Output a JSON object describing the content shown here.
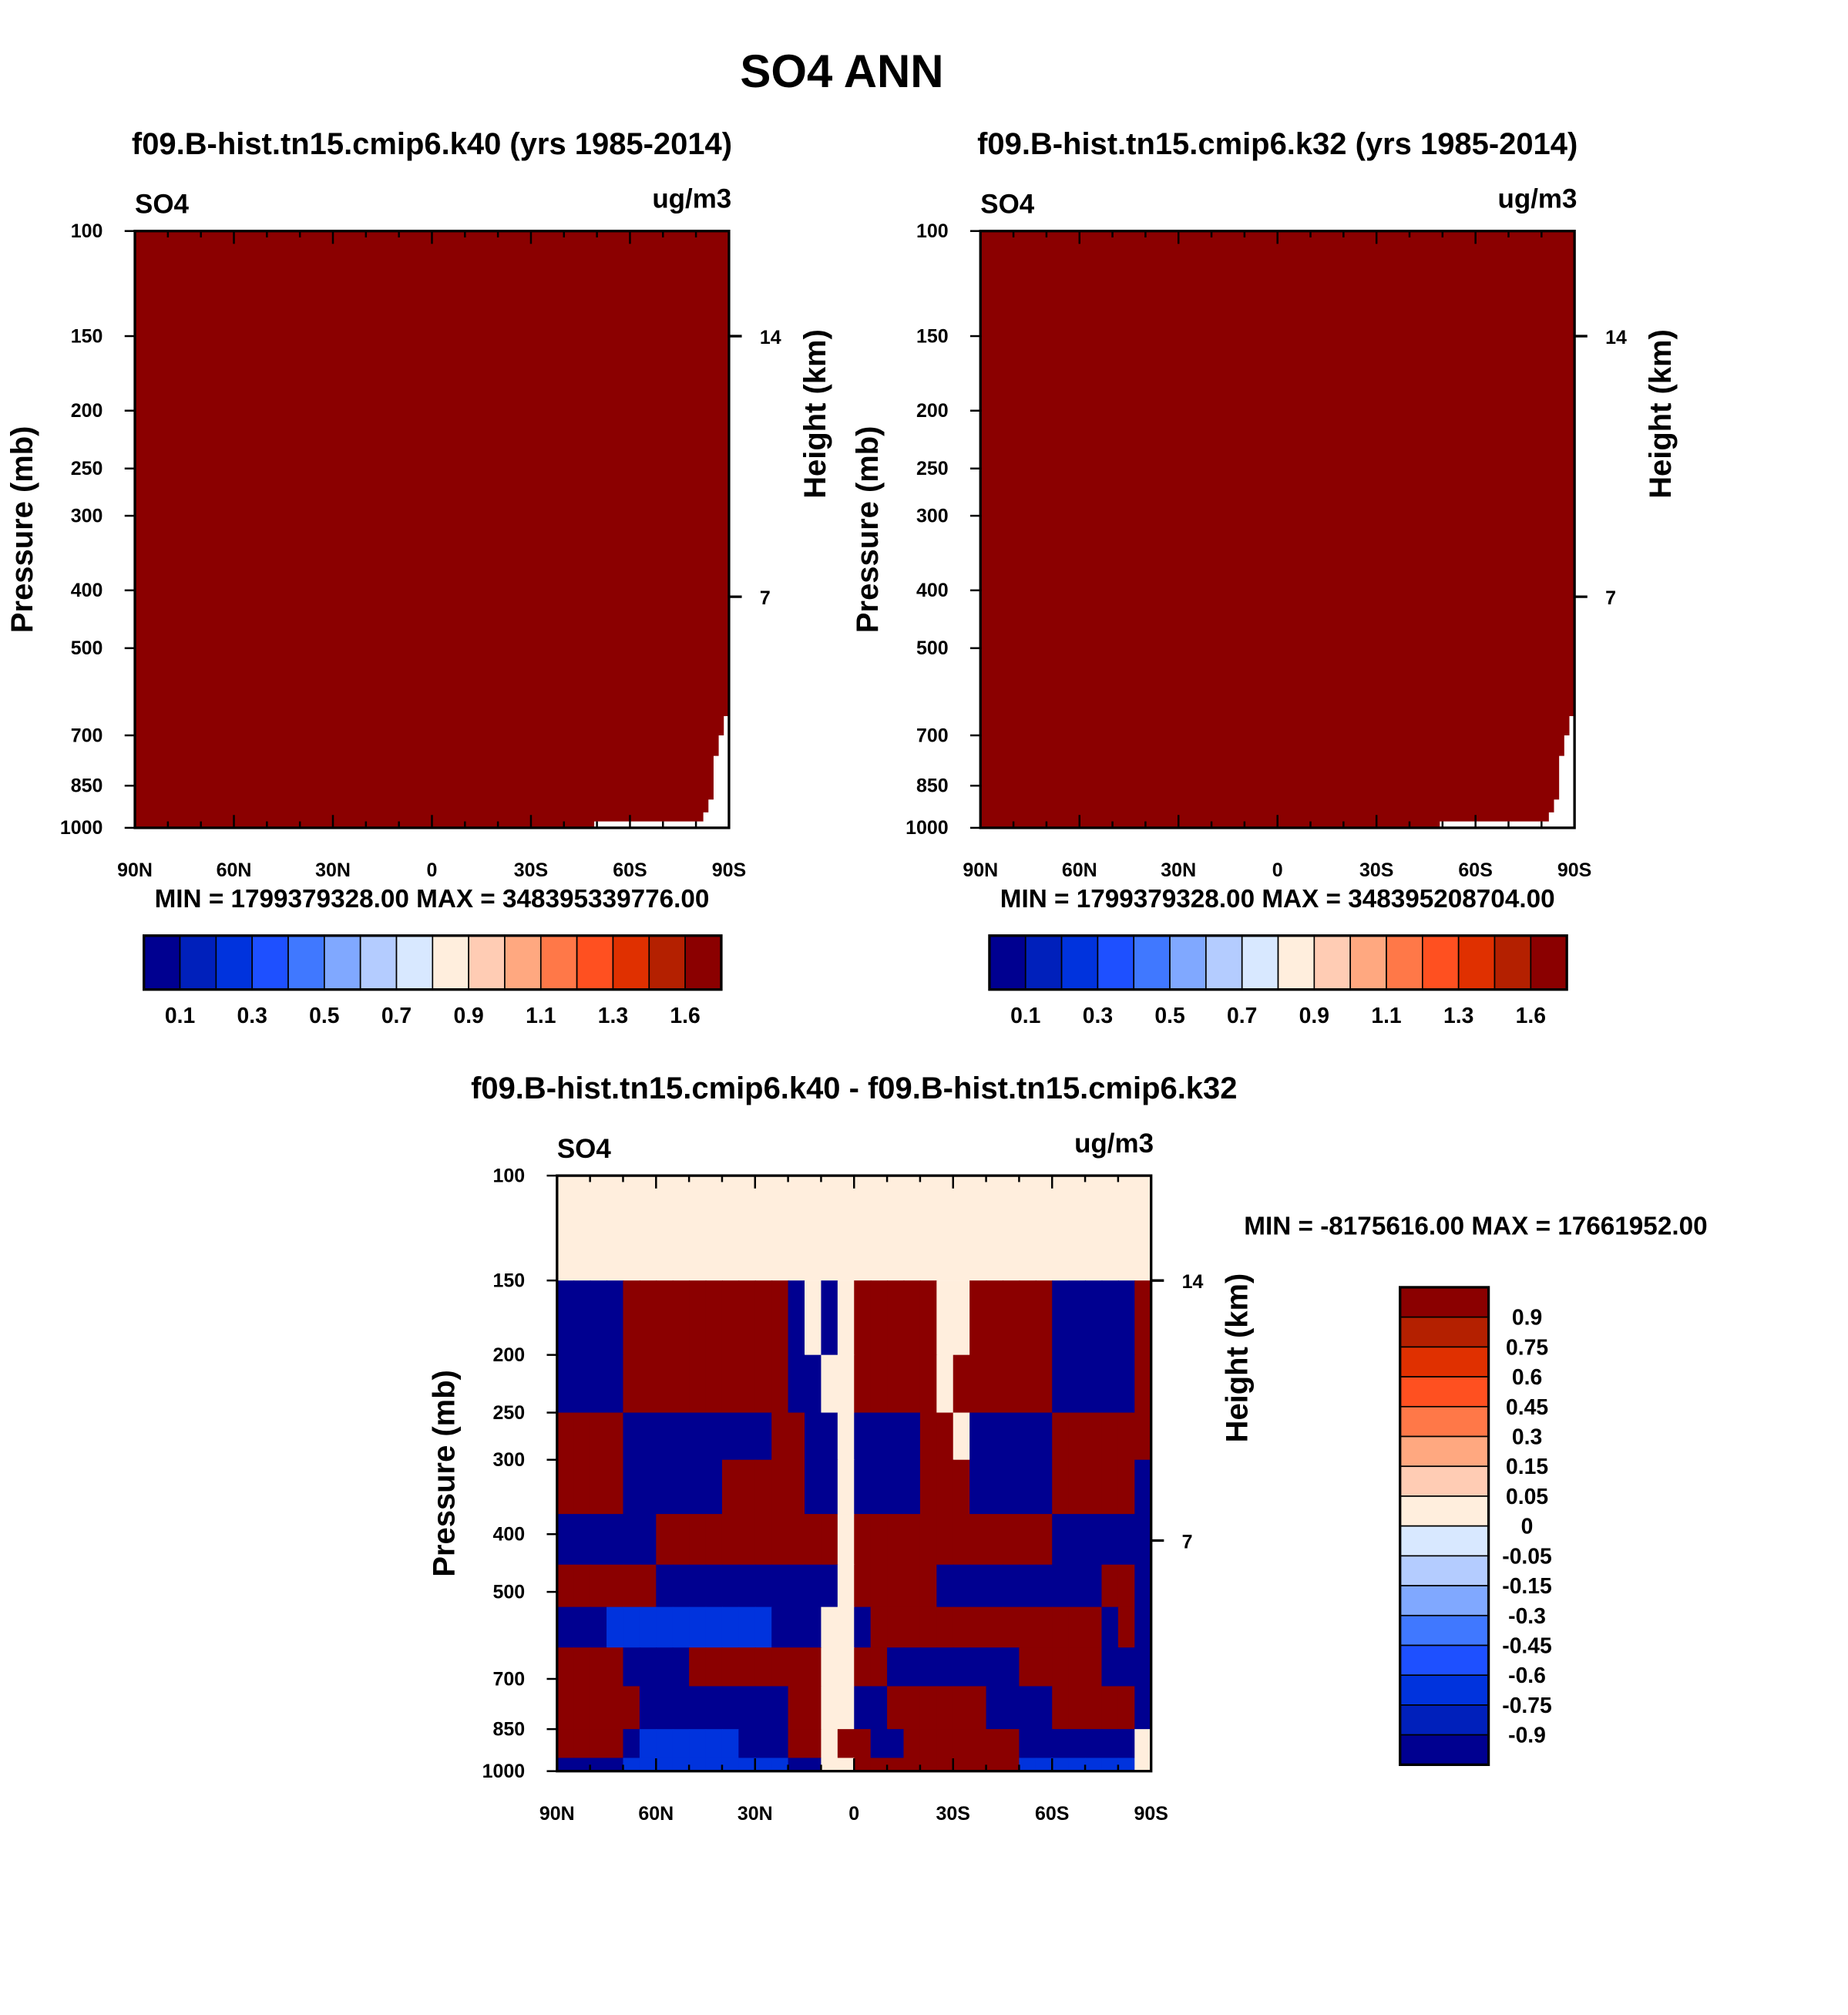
{
  "figure_title": "SO4 ANN",
  "chart_data": [
    {
      "type": "heatmap",
      "title": "f09.B-hist.tn15.cmip6.k40 (yrs 1985-2014)",
      "left_label": "SO4",
      "right_label": "ug/m3",
      "ylabel": "Pressure (mb)",
      "ylabel_right": "Height (km)",
      "y_ticks": [
        100,
        150,
        200,
        250,
        300,
        400,
        500,
        700,
        850,
        1000
      ],
      "y_right_ticks": [
        {
          "label": "14",
          "pressure": 150
        },
        {
          "label": "7",
          "pressure": 410
        }
      ],
      "x_ticks": [
        "90N",
        "60N",
        "30N",
        "0",
        "30S",
        "60S",
        "90S"
      ],
      "ylim": [
        1000,
        100
      ],
      "xlim": [
        90,
        -90
      ],
      "stats": "MIN = 1799379328.00  MAX = 348395339776.00",
      "fill_level_index": 15,
      "colorbar_labels": [
        "0.1",
        "0.3",
        "0.5",
        "0.7",
        "0.9",
        "1.1",
        "1.3",
        "1.6"
      ]
    },
    {
      "type": "heatmap",
      "title": "f09.B-hist.tn15.cmip6.k32 (yrs 1985-2014)",
      "left_label": "SO4",
      "right_label": "ug/m3",
      "ylabel": "Pressure (mb)",
      "ylabel_right": "Height (km)",
      "y_ticks": [
        100,
        150,
        200,
        250,
        300,
        400,
        500,
        700,
        850,
        1000
      ],
      "y_right_ticks": [
        {
          "label": "14",
          "pressure": 150
        },
        {
          "label": "7",
          "pressure": 410
        }
      ],
      "x_ticks": [
        "90N",
        "60N",
        "30N",
        "0",
        "30S",
        "60S",
        "90S"
      ],
      "ylim": [
        1000,
        100
      ],
      "xlim": [
        90,
        -90
      ],
      "stats": "MIN = 1799379328.00  MAX = 348395208704.00",
      "fill_level_index": 15,
      "colorbar_labels": [
        "0.1",
        "0.3",
        "0.5",
        "0.7",
        "0.9",
        "1.1",
        "1.3",
        "1.6"
      ]
    },
    {
      "type": "heatmap",
      "title": "f09.B-hist.tn15.cmip6.k40 - f09.B-hist.tn15.cmip6.k32",
      "left_label": "SO4",
      "right_label": "ug/m3",
      "ylabel": "Pressure (mb)",
      "ylabel_right": "Height (km)",
      "y_ticks": [
        100,
        150,
        200,
        250,
        300,
        400,
        500,
        700,
        850,
        1000
      ],
      "y_right_ticks": [
        {
          "label": "14",
          "pressure": 150
        },
        {
          "label": "7",
          "pressure": 410
        }
      ],
      "x_ticks": [
        "90N",
        "60N",
        "30N",
        "0",
        "30S",
        "60S",
        "90S"
      ],
      "ylim": [
        1000,
        100
      ],
      "xlim": [
        90,
        -90
      ],
      "stats": "MIN = -8175616.00  MAX = 17661952.00",
      "colorbar_labels": [
        "0.9",
        "0.75",
        "0.6",
        "0.45",
        "0.3",
        "0.15",
        "0.05",
        "0",
        "-0.05",
        "-0.15",
        "-0.3",
        "-0.45",
        "-0.6",
        "-0.75",
        "-0.9"
      ],
      "field_approx": {
        "pressure_bounds": [
          150,
          200,
          250,
          300,
          370,
          450,
          530,
          620,
          720,
          850,
          950,
          1000
        ],
        "top_band": {
          "pressure": [
            100,
            150
          ],
          "class": "W"
        },
        "lat_step_deg": 5,
        "classes": {
          "B": "-0.9 and below",
          "M": "-0.75",
          "W": "0 to 0.05",
          "R": "0.9 and above"
        },
        "rows": [
          "BBBBRRRRRRRRRRBWBWRRRRRWWRRRRRBBBBBR",
          "BBBBRRRRRRRRRRBBWWRRRRRWRRRRRRBBBBBR",
          "RRRRBBBBBBBBBRRBBWBBBBRRWBBBBBRRRRRR",
          "RRRRBBBBBBRRRRRBBWBBBBRRRBBBBBRRRRRB",
          "BBBBBBRRRRRRRRRRRWRRRRRRRRRRRRBBBBBB",
          "RRRRRRBBBBBBBBBBBWRRRRRBBBBBBBBBBRRB",
          "BBBMMMMMMMMMMBBBWWBRRRRRRRRRRRRRRBRB",
          "RRRRBBBBRRRRRRRRWWRRBBBBBBBBRRRRRBBB",
          "RRRRRBBBBBBBBBRRWWBBRRRRRRBBBBRRRRRB",
          "RRRRBMMMMMMBBBRRWRRBBRRRRRRRBBBBBBBW",
          "BBBBMMMMMMMMMMBBWWRRRRRRRRRRMMMMMMMW"
        ]
      }
    }
  ],
  "palette": [
    "#000090",
    "#0020bb",
    "#0033dd",
    "#1e50ff",
    "#4078ff",
    "#80a8ff",
    "#b4ccff",
    "#d8e8ff",
    "#ffeedd",
    "#ffccb4",
    "#ffa880",
    "#ff7848",
    "#ff5020",
    "#e03000",
    "#b42000",
    "#8b0000"
  ],
  "class_colors": {
    "B": "#000090",
    "M": "#0033dd",
    "W": "#ffeedd",
    "R": "#8b0000"
  }
}
